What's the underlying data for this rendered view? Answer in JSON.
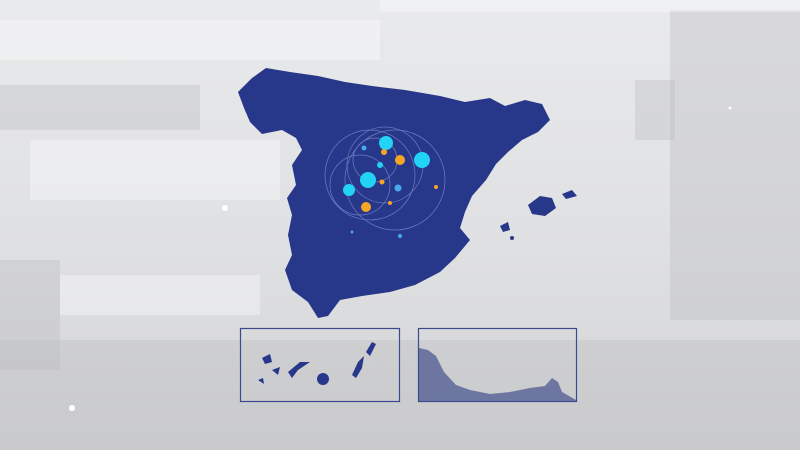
{
  "map": {
    "land_color": "#27378a",
    "inset_border_color": "#3b4a8f",
    "accent_cyan": "#22d3f5",
    "accent_orange": "#f5a623",
    "insets": [
      "canary-islands",
      "ceuta-melilla-coast"
    ]
  }
}
